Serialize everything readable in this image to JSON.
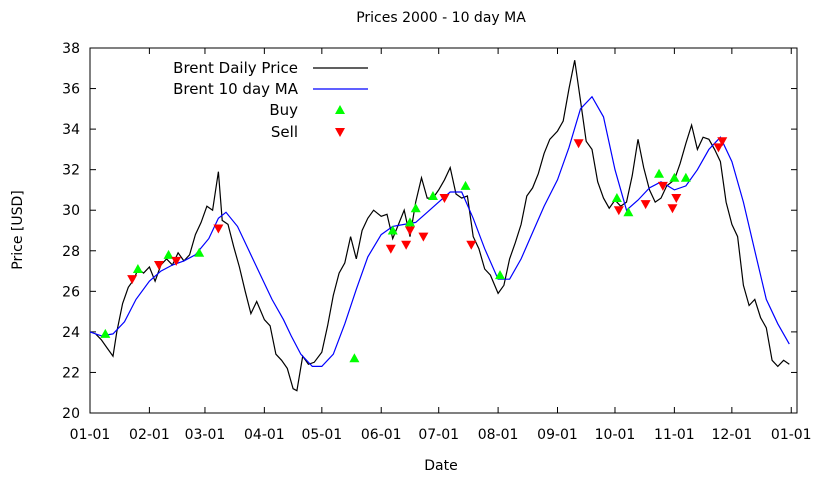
{
  "chart_data": {
    "type": "line",
    "title": "Prices 2000 - 10 day MA",
    "xlabel": "Date",
    "ylabel": "Price [USD]",
    "xlim": [
      "2000-01-01",
      "2001-01-04"
    ],
    "ylim": [
      20,
      38
    ],
    "x_ticks": [
      "01-01",
      "02-01",
      "03-01",
      "04-01",
      "05-01",
      "06-01",
      "07-01",
      "08-01",
      "09-01",
      "10-01",
      "11-01",
      "12-01",
      "01-01"
    ],
    "x_tick_dates": [
      "2000-01-01",
      "2000-02-01",
      "2000-03-01",
      "2000-04-01",
      "2000-05-01",
      "2000-06-01",
      "2000-07-01",
      "2000-08-01",
      "2000-09-01",
      "2000-10-01",
      "2000-11-01",
      "2000-12-01",
      "2001-01-01"
    ],
    "y_ticks": [
      20,
      22,
      24,
      26,
      28,
      30,
      32,
      34,
      36,
      38
    ],
    "grid": false,
    "legend_position": "top-left",
    "series": [
      {
        "name": "Brent Daily Price",
        "color": "#000000",
        "style": "line",
        "points": [
          [
            "2000-01-04",
            23.9
          ],
          [
            "2000-01-07",
            23.6
          ],
          [
            "2000-01-10",
            23.2
          ],
          [
            "2000-01-13",
            22.8
          ],
          [
            "2000-01-15",
            24.0
          ],
          [
            "2000-01-18",
            25.4
          ],
          [
            "2000-01-21",
            26.2
          ],
          [
            "2000-01-24",
            26.6
          ],
          [
            "2000-01-26",
            27.1
          ],
          [
            "2000-01-29",
            26.9
          ],
          [
            "2000-02-01",
            27.2
          ],
          [
            "2000-02-04",
            26.5
          ],
          [
            "2000-02-07",
            27.3
          ],
          [
            "2000-02-10",
            27.6
          ],
          [
            "2000-02-13",
            27.3
          ],
          [
            "2000-02-16",
            27.9
          ],
          [
            "2000-02-19",
            27.5
          ],
          [
            "2000-02-22",
            27.8
          ],
          [
            "2000-02-25",
            28.8
          ],
          [
            "2000-02-28",
            29.4
          ],
          [
            "2000-03-02",
            30.2
          ],
          [
            "2000-03-05",
            30.0
          ],
          [
            "2000-03-08",
            31.9
          ],
          [
            "2000-03-10",
            29.5
          ],
          [
            "2000-03-13",
            29.3
          ],
          [
            "2000-03-16",
            28.2
          ],
          [
            "2000-03-19",
            27.2
          ],
          [
            "2000-03-22",
            26.0
          ],
          [
            "2000-03-25",
            24.9
          ],
          [
            "2000-03-28",
            25.5
          ],
          [
            "2000-04-01",
            24.6
          ],
          [
            "2000-04-04",
            24.3
          ],
          [
            "2000-04-07",
            22.9
          ],
          [
            "2000-04-10",
            22.6
          ],
          [
            "2000-04-13",
            22.2
          ],
          [
            "2000-04-16",
            21.2
          ],
          [
            "2000-04-18",
            21.1
          ],
          [
            "2000-04-21",
            22.8
          ],
          [
            "2000-04-24",
            22.4
          ],
          [
            "2000-04-27",
            22.5
          ],
          [
            "2000-05-01",
            23.0
          ],
          [
            "2000-05-04",
            24.3
          ],
          [
            "2000-05-07",
            25.8
          ],
          [
            "2000-05-10",
            26.9
          ],
          [
            "2000-05-13",
            27.4
          ],
          [
            "2000-05-16",
            28.7
          ],
          [
            "2000-05-19",
            27.6
          ],
          [
            "2000-05-22",
            29.0
          ],
          [
            "2000-05-25",
            29.6
          ],
          [
            "2000-05-28",
            30.0
          ],
          [
            "2000-06-01",
            29.7
          ],
          [
            "2000-06-04",
            29.8
          ],
          [
            "2000-06-07",
            28.6
          ],
          [
            "2000-06-10",
            29.3
          ],
          [
            "2000-06-13",
            30.0
          ],
          [
            "2000-06-16",
            28.7
          ],
          [
            "2000-06-19",
            30.4
          ],
          [
            "2000-06-22",
            31.6
          ],
          [
            "2000-06-25",
            30.6
          ],
          [
            "2000-06-28",
            30.6
          ],
          [
            "2000-07-01",
            31.0
          ],
          [
            "2000-07-04",
            31.5
          ],
          [
            "2000-07-07",
            32.1
          ],
          [
            "2000-07-10",
            30.8
          ],
          [
            "2000-07-13",
            30.6
          ],
          [
            "2000-07-16",
            30.7
          ],
          [
            "2000-07-19",
            28.7
          ],
          [
            "2000-07-22",
            28.1
          ],
          [
            "2000-07-25",
            27.1
          ],
          [
            "2000-07-28",
            26.8
          ],
          [
            "2000-08-01",
            25.9
          ],
          [
            "2000-08-04",
            26.3
          ],
          [
            "2000-08-07",
            27.6
          ],
          [
            "2000-08-10",
            28.4
          ],
          [
            "2000-08-13",
            29.3
          ],
          [
            "2000-08-16",
            30.7
          ],
          [
            "2000-08-19",
            31.1
          ],
          [
            "2000-08-22",
            31.8
          ],
          [
            "2000-08-25",
            32.8
          ],
          [
            "2000-08-28",
            33.5
          ],
          [
            "2000-09-01",
            33.9
          ],
          [
            "2000-09-04",
            34.4
          ],
          [
            "2000-09-07",
            36.0
          ],
          [
            "2000-09-10",
            37.4
          ],
          [
            "2000-09-13",
            35.4
          ],
          [
            "2000-09-16",
            33.4
          ],
          [
            "2000-09-19",
            33.0
          ],
          [
            "2000-09-22",
            31.4
          ],
          [
            "2000-09-25",
            30.6
          ],
          [
            "2000-09-28",
            30.1
          ],
          [
            "2000-10-01",
            30.5
          ],
          [
            "2000-10-04",
            30.2
          ],
          [
            "2000-10-07",
            30.4
          ],
          [
            "2000-10-10",
            31.7
          ],
          [
            "2000-10-13",
            33.5
          ],
          [
            "2000-10-16",
            32.1
          ],
          [
            "2000-10-19",
            31.0
          ],
          [
            "2000-10-22",
            30.4
          ],
          [
            "2000-10-25",
            30.6
          ],
          [
            "2000-10-28",
            31.2
          ],
          [
            "2000-11-01",
            31.5
          ],
          [
            "2000-11-04",
            32.3
          ],
          [
            "2000-11-07",
            33.3
          ],
          [
            "2000-11-10",
            34.2
          ],
          [
            "2000-11-13",
            33.0
          ],
          [
            "2000-11-16",
            33.6
          ],
          [
            "2000-11-19",
            33.5
          ],
          [
            "2000-11-22",
            33.0
          ],
          [
            "2000-11-25",
            32.4
          ],
          [
            "2000-11-28",
            30.4
          ],
          [
            "2000-12-01",
            29.3
          ],
          [
            "2000-12-04",
            28.7
          ],
          [
            "2000-12-07",
            26.3
          ],
          [
            "2000-12-10",
            25.3
          ],
          [
            "2000-12-13",
            25.6
          ],
          [
            "2000-12-16",
            24.7
          ],
          [
            "2000-12-19",
            24.2
          ],
          [
            "2000-12-22",
            22.6
          ],
          [
            "2000-12-25",
            22.3
          ],
          [
            "2000-12-28",
            22.6
          ],
          [
            "2000-12-31",
            22.4
          ]
        ]
      },
      {
        "name": "Brent 10 day MA",
        "color": "#0000ff",
        "style": "line",
        "points": [
          [
            "2000-01-01",
            24.0
          ],
          [
            "2000-01-07",
            23.8
          ],
          [
            "2000-01-13",
            23.9
          ],
          [
            "2000-01-19",
            24.5
          ],
          [
            "2000-01-25",
            25.6
          ],
          [
            "2000-02-01",
            26.5
          ],
          [
            "2000-02-07",
            27.0
          ],
          [
            "2000-02-13",
            27.3
          ],
          [
            "2000-02-19",
            27.5
          ],
          [
            "2000-02-25",
            27.8
          ],
          [
            "2000-03-03",
            28.6
          ],
          [
            "2000-03-08",
            29.6
          ],
          [
            "2000-03-12",
            29.9
          ],
          [
            "2000-03-18",
            29.2
          ],
          [
            "2000-03-24",
            28.0
          ],
          [
            "2000-03-30",
            26.8
          ],
          [
            "2000-04-05",
            25.6
          ],
          [
            "2000-04-11",
            24.6
          ],
          [
            "2000-04-15",
            23.8
          ],
          [
            "2000-04-20",
            22.9
          ],
          [
            "2000-04-26",
            22.3
          ],
          [
            "2000-05-01",
            22.3
          ],
          [
            "2000-05-07",
            22.9
          ],
          [
            "2000-05-13",
            24.4
          ],
          [
            "2000-05-19",
            26.1
          ],
          [
            "2000-05-25",
            27.7
          ],
          [
            "2000-06-01",
            28.8
          ],
          [
            "2000-06-07",
            29.2
          ],
          [
            "2000-06-13",
            29.3
          ],
          [
            "2000-06-19",
            29.4
          ],
          [
            "2000-06-25",
            29.9
          ],
          [
            "2000-07-01",
            30.4
          ],
          [
            "2000-07-07",
            30.9
          ],
          [
            "2000-07-13",
            30.9
          ],
          [
            "2000-07-19",
            29.6
          ],
          [
            "2000-07-25",
            28.1
          ],
          [
            "2000-08-01",
            26.6
          ],
          [
            "2000-08-07",
            26.6
          ],
          [
            "2000-08-13",
            27.6
          ],
          [
            "2000-08-19",
            28.9
          ],
          [
            "2000-08-25",
            30.2
          ],
          [
            "2000-09-01",
            31.5
          ],
          [
            "2000-09-07",
            33.1
          ],
          [
            "2000-09-13",
            35.0
          ],
          [
            "2000-09-19",
            35.6
          ],
          [
            "2000-09-25",
            34.6
          ],
          [
            "2000-10-01",
            32.0
          ],
          [
            "2000-10-07",
            30.0
          ],
          [
            "2000-10-13",
            30.5
          ],
          [
            "2000-10-19",
            31.1
          ],
          [
            "2000-10-25",
            31.4
          ],
          [
            "2000-11-01",
            31.0
          ],
          [
            "2000-11-07",
            31.2
          ],
          [
            "2000-11-13",
            32.0
          ],
          [
            "2000-11-19",
            33.0
          ],
          [
            "2000-11-25",
            33.6
          ],
          [
            "2000-12-01",
            32.4
          ],
          [
            "2000-12-07",
            30.4
          ],
          [
            "2000-12-13",
            28.0
          ],
          [
            "2000-12-19",
            25.6
          ],
          [
            "2000-12-25",
            24.4
          ],
          [
            "2000-12-31",
            23.4
          ]
        ]
      },
      {
        "name": "Buy",
        "color": "#00ff00",
        "style": "marker-up",
        "points": [
          [
            "2000-01-09",
            23.9
          ],
          [
            "2000-01-26",
            27.1
          ],
          [
            "2000-02-11",
            27.8
          ],
          [
            "2000-02-27",
            27.9
          ],
          [
            "2000-05-18",
            22.7
          ],
          [
            "2000-06-07",
            29.0
          ],
          [
            "2000-06-16",
            29.4
          ],
          [
            "2000-06-19",
            30.1
          ],
          [
            "2000-06-28",
            30.7
          ],
          [
            "2000-07-15",
            31.2
          ],
          [
            "2000-08-02",
            26.8
          ],
          [
            "2000-10-02",
            30.6
          ],
          [
            "2000-10-08",
            29.9
          ],
          [
            "2000-10-24",
            31.8
          ],
          [
            "2000-11-01",
            31.6
          ],
          [
            "2000-11-07",
            31.6
          ]
        ]
      },
      {
        "name": "Sell",
        "color": "#ff0000",
        "style": "marker-down",
        "points": [
          [
            "2000-01-23",
            26.6
          ],
          [
            "2000-02-06",
            27.3
          ],
          [
            "2000-02-15",
            27.5
          ],
          [
            "2000-03-08",
            29.1
          ],
          [
            "2000-06-06",
            28.1
          ],
          [
            "2000-06-14",
            28.3
          ],
          [
            "2000-06-16",
            29.0
          ],
          [
            "2000-06-23",
            28.7
          ],
          [
            "2000-07-04",
            30.6
          ],
          [
            "2000-07-18",
            28.3
          ],
          [
            "2000-09-12",
            33.3
          ],
          [
            "2000-10-03",
            30.0
          ],
          [
            "2000-10-17",
            30.3
          ],
          [
            "2000-10-26",
            31.2
          ],
          [
            "2000-10-31",
            30.1
          ],
          [
            "2000-11-02",
            30.6
          ],
          [
            "2000-11-24",
            33.1
          ],
          [
            "2000-11-26",
            33.4
          ]
        ]
      }
    ]
  }
}
